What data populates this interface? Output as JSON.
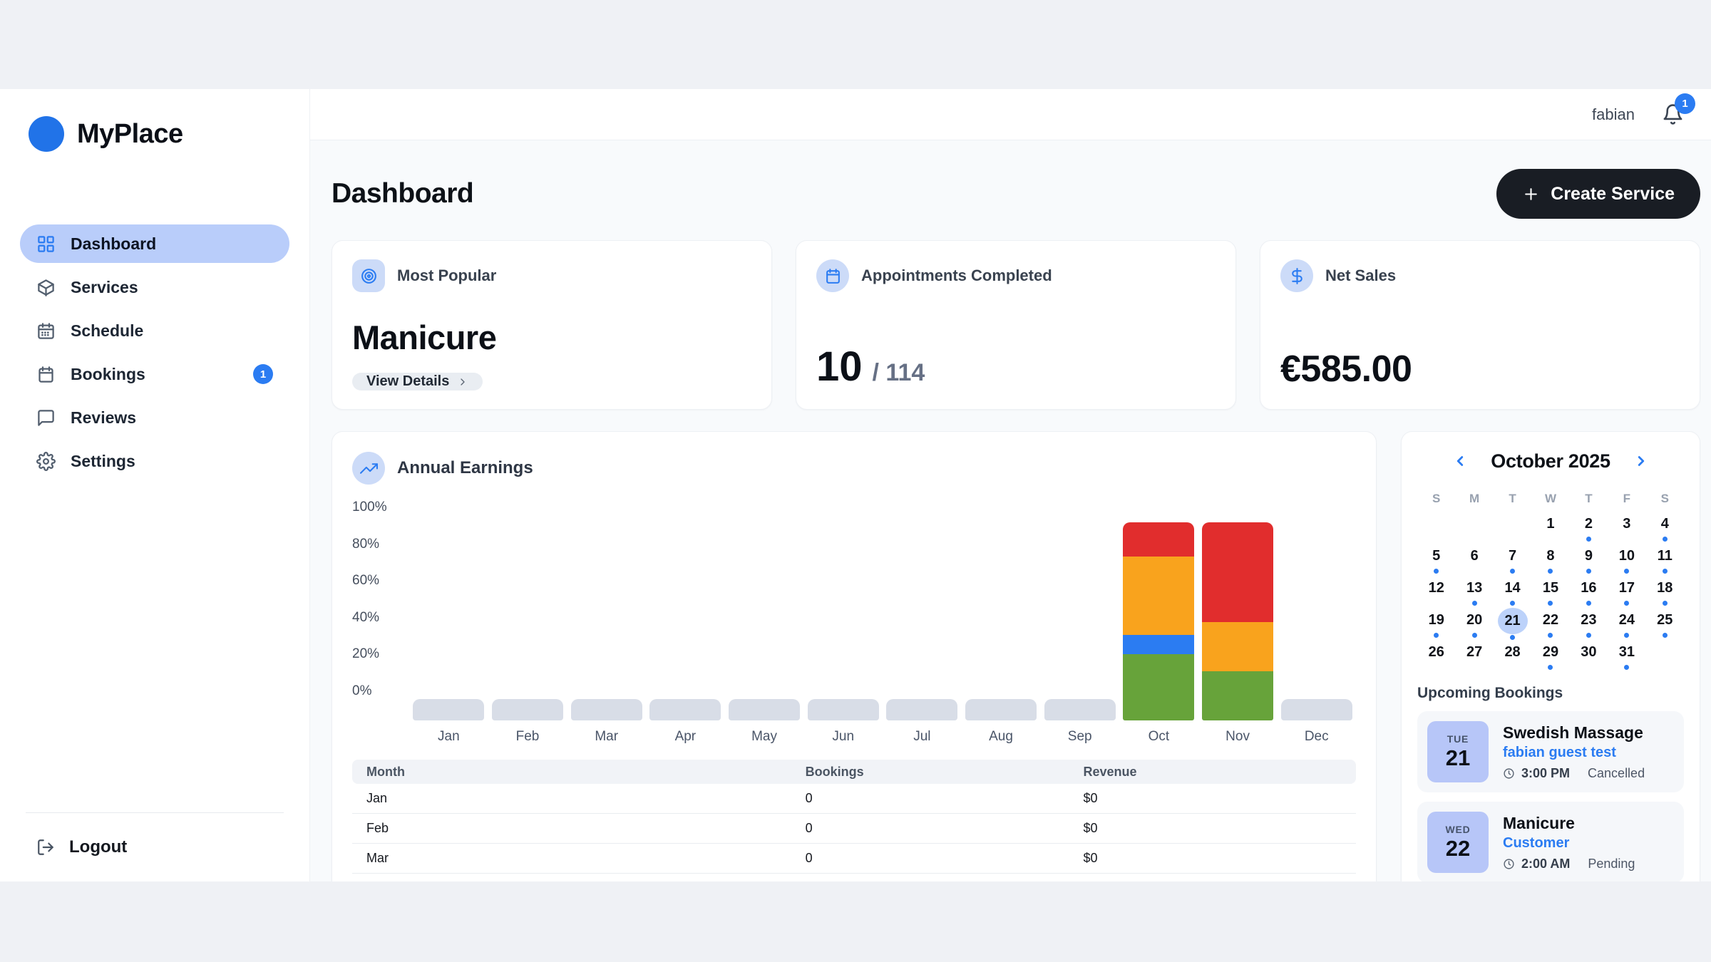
{
  "brand": "MyPlace",
  "topbar": {
    "username": "fabian",
    "notifications": "1"
  },
  "sidebar": {
    "items": [
      {
        "label": "Dashboard",
        "icon": "dashboard-grid-icon",
        "active": true
      },
      {
        "label": "Services",
        "icon": "package-icon"
      },
      {
        "label": "Schedule",
        "icon": "calendar-dots-icon"
      },
      {
        "label": "Bookings",
        "icon": "calendar-icon",
        "badge": "1"
      },
      {
        "label": "Reviews",
        "icon": "chat-icon"
      },
      {
        "label": "Settings",
        "icon": "gear-icon"
      }
    ],
    "logout": "Logout"
  },
  "page": {
    "title": "Dashboard",
    "create_button": "Create Service"
  },
  "stats": {
    "most_popular": {
      "title": "Most Popular",
      "value": "Manicure",
      "action": "View Details"
    },
    "appointments": {
      "title": "Appointments Completed",
      "value": "10",
      "total": "/ 114"
    },
    "net_sales": {
      "title": "Net Sales",
      "value": "€585.00"
    }
  },
  "chart_data": {
    "type": "bar",
    "stacked": true,
    "title": "Annual Earnings",
    "categories": [
      "Jan",
      "Feb",
      "Mar",
      "Apr",
      "May",
      "Jun",
      "Jul",
      "Aug",
      "Sep",
      "Oct",
      "Nov",
      "Dec"
    ],
    "series": [
      {
        "name": "green",
        "color": "#67a33a",
        "values": [
          0,
          0,
          0,
          0,
          0,
          0,
          0,
          0,
          0,
          31,
          23,
          0
        ]
      },
      {
        "name": "blue",
        "color": "#2b7cf2",
        "values": [
          0,
          0,
          0,
          0,
          0,
          0,
          0,
          0,
          0,
          9,
          0,
          0
        ]
      },
      {
        "name": "orange",
        "color": "#f9a31d",
        "values": [
          0,
          0,
          0,
          0,
          0,
          0,
          0,
          0,
          0,
          37,
          23,
          0
        ]
      },
      {
        "name": "red",
        "color": "#e12d2d",
        "values": [
          0,
          0,
          0,
          0,
          0,
          0,
          0,
          0,
          0,
          16,
          47,
          0
        ]
      }
    ],
    "y_ticks": [
      "0%",
      "20%",
      "40%",
      "60%",
      "80%",
      "100%"
    ],
    "ylim": [
      0,
      100
    ],
    "empty_bar_color": "#d8dde7",
    "legend": "none",
    "grid": false
  },
  "earnings_table": {
    "headers": [
      "Month",
      "Bookings",
      "Revenue"
    ],
    "rows": [
      [
        "Jan",
        "0",
        "$0"
      ],
      [
        "Feb",
        "0",
        "$0"
      ],
      [
        "Mar",
        "0",
        "$0"
      ]
    ]
  },
  "calendar": {
    "title": "October 2025",
    "day_headers": [
      "S",
      "M",
      "T",
      "W",
      "T",
      "F",
      "S"
    ],
    "start_offset": 3,
    "days": 31,
    "selected_day": 21,
    "dot_days": [
      2,
      4,
      5,
      7,
      8,
      9,
      10,
      11,
      13,
      14,
      15,
      16,
      17,
      18,
      19,
      20,
      21,
      22,
      23,
      24,
      25,
      29,
      31
    ]
  },
  "upcoming": {
    "title": "Upcoming Bookings",
    "bookings": [
      {
        "day_abbr": "TUE",
        "day_num": "21",
        "service": "Swedish Massage",
        "customer": "fabian guest test",
        "time": "3:00 PM",
        "status": "Cancelled"
      },
      {
        "day_abbr": "WED",
        "day_num": "22",
        "service": "Manicure",
        "customer": "Customer",
        "time": "2:00 AM",
        "status": "Pending"
      }
    ]
  },
  "colors": {
    "accent": "#2b7cf2",
    "active_nav_bg": "#b9cdfa",
    "brand_dot": "#2173e8"
  }
}
